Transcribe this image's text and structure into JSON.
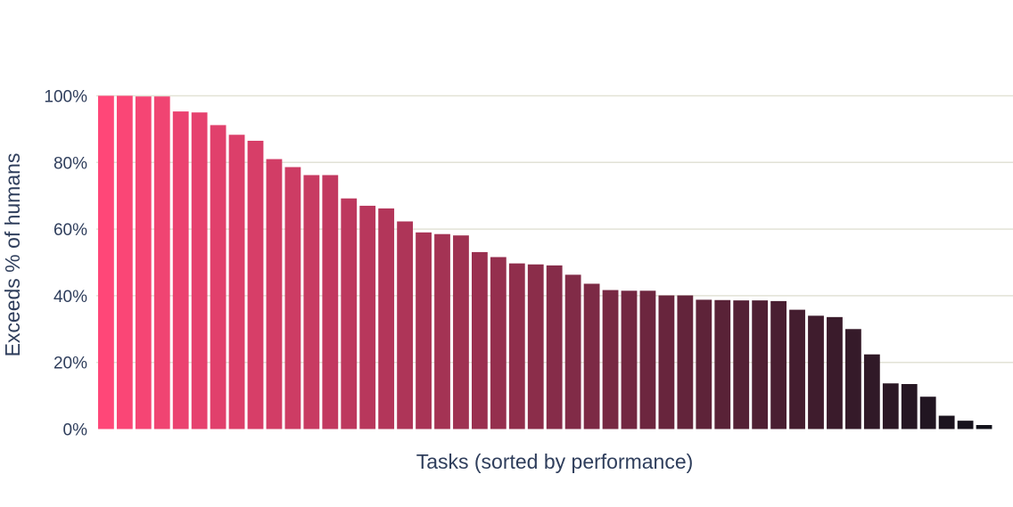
{
  "chart_data": {
    "type": "bar",
    "xlabel": "Tasks (sorted by performance)",
    "ylabel": "Exceeds % of humans",
    "ylim": [
      0,
      100
    ],
    "yticks": [
      0,
      20,
      40,
      60,
      80,
      100
    ],
    "ytick_labels": [
      "0%",
      "20%",
      "40%",
      "60%",
      "80%",
      "100%"
    ],
    "grid": true,
    "color_start": "#ff4778",
    "color_end": "#12121b",
    "values": [
      100,
      100,
      99.8,
      99.8,
      95.3,
      95,
      91.2,
      88.3,
      86.5,
      81,
      78.6,
      76.2,
      76.2,
      69.2,
      67,
      66.2,
      62.3,
      59,
      58.5,
      58.1,
      53.1,
      51.6,
      49.7,
      49.4,
      49.1,
      46.3,
      43.6,
      41.7,
      41.5,
      41.5,
      40.1,
      40.1,
      38.8,
      38.7,
      38.6,
      38.6,
      38.4,
      35.8,
      34,
      33.6,
      30,
      22.4,
      13.7,
      13.5,
      9.7,
      4,
      2.5,
      1.2
    ]
  }
}
